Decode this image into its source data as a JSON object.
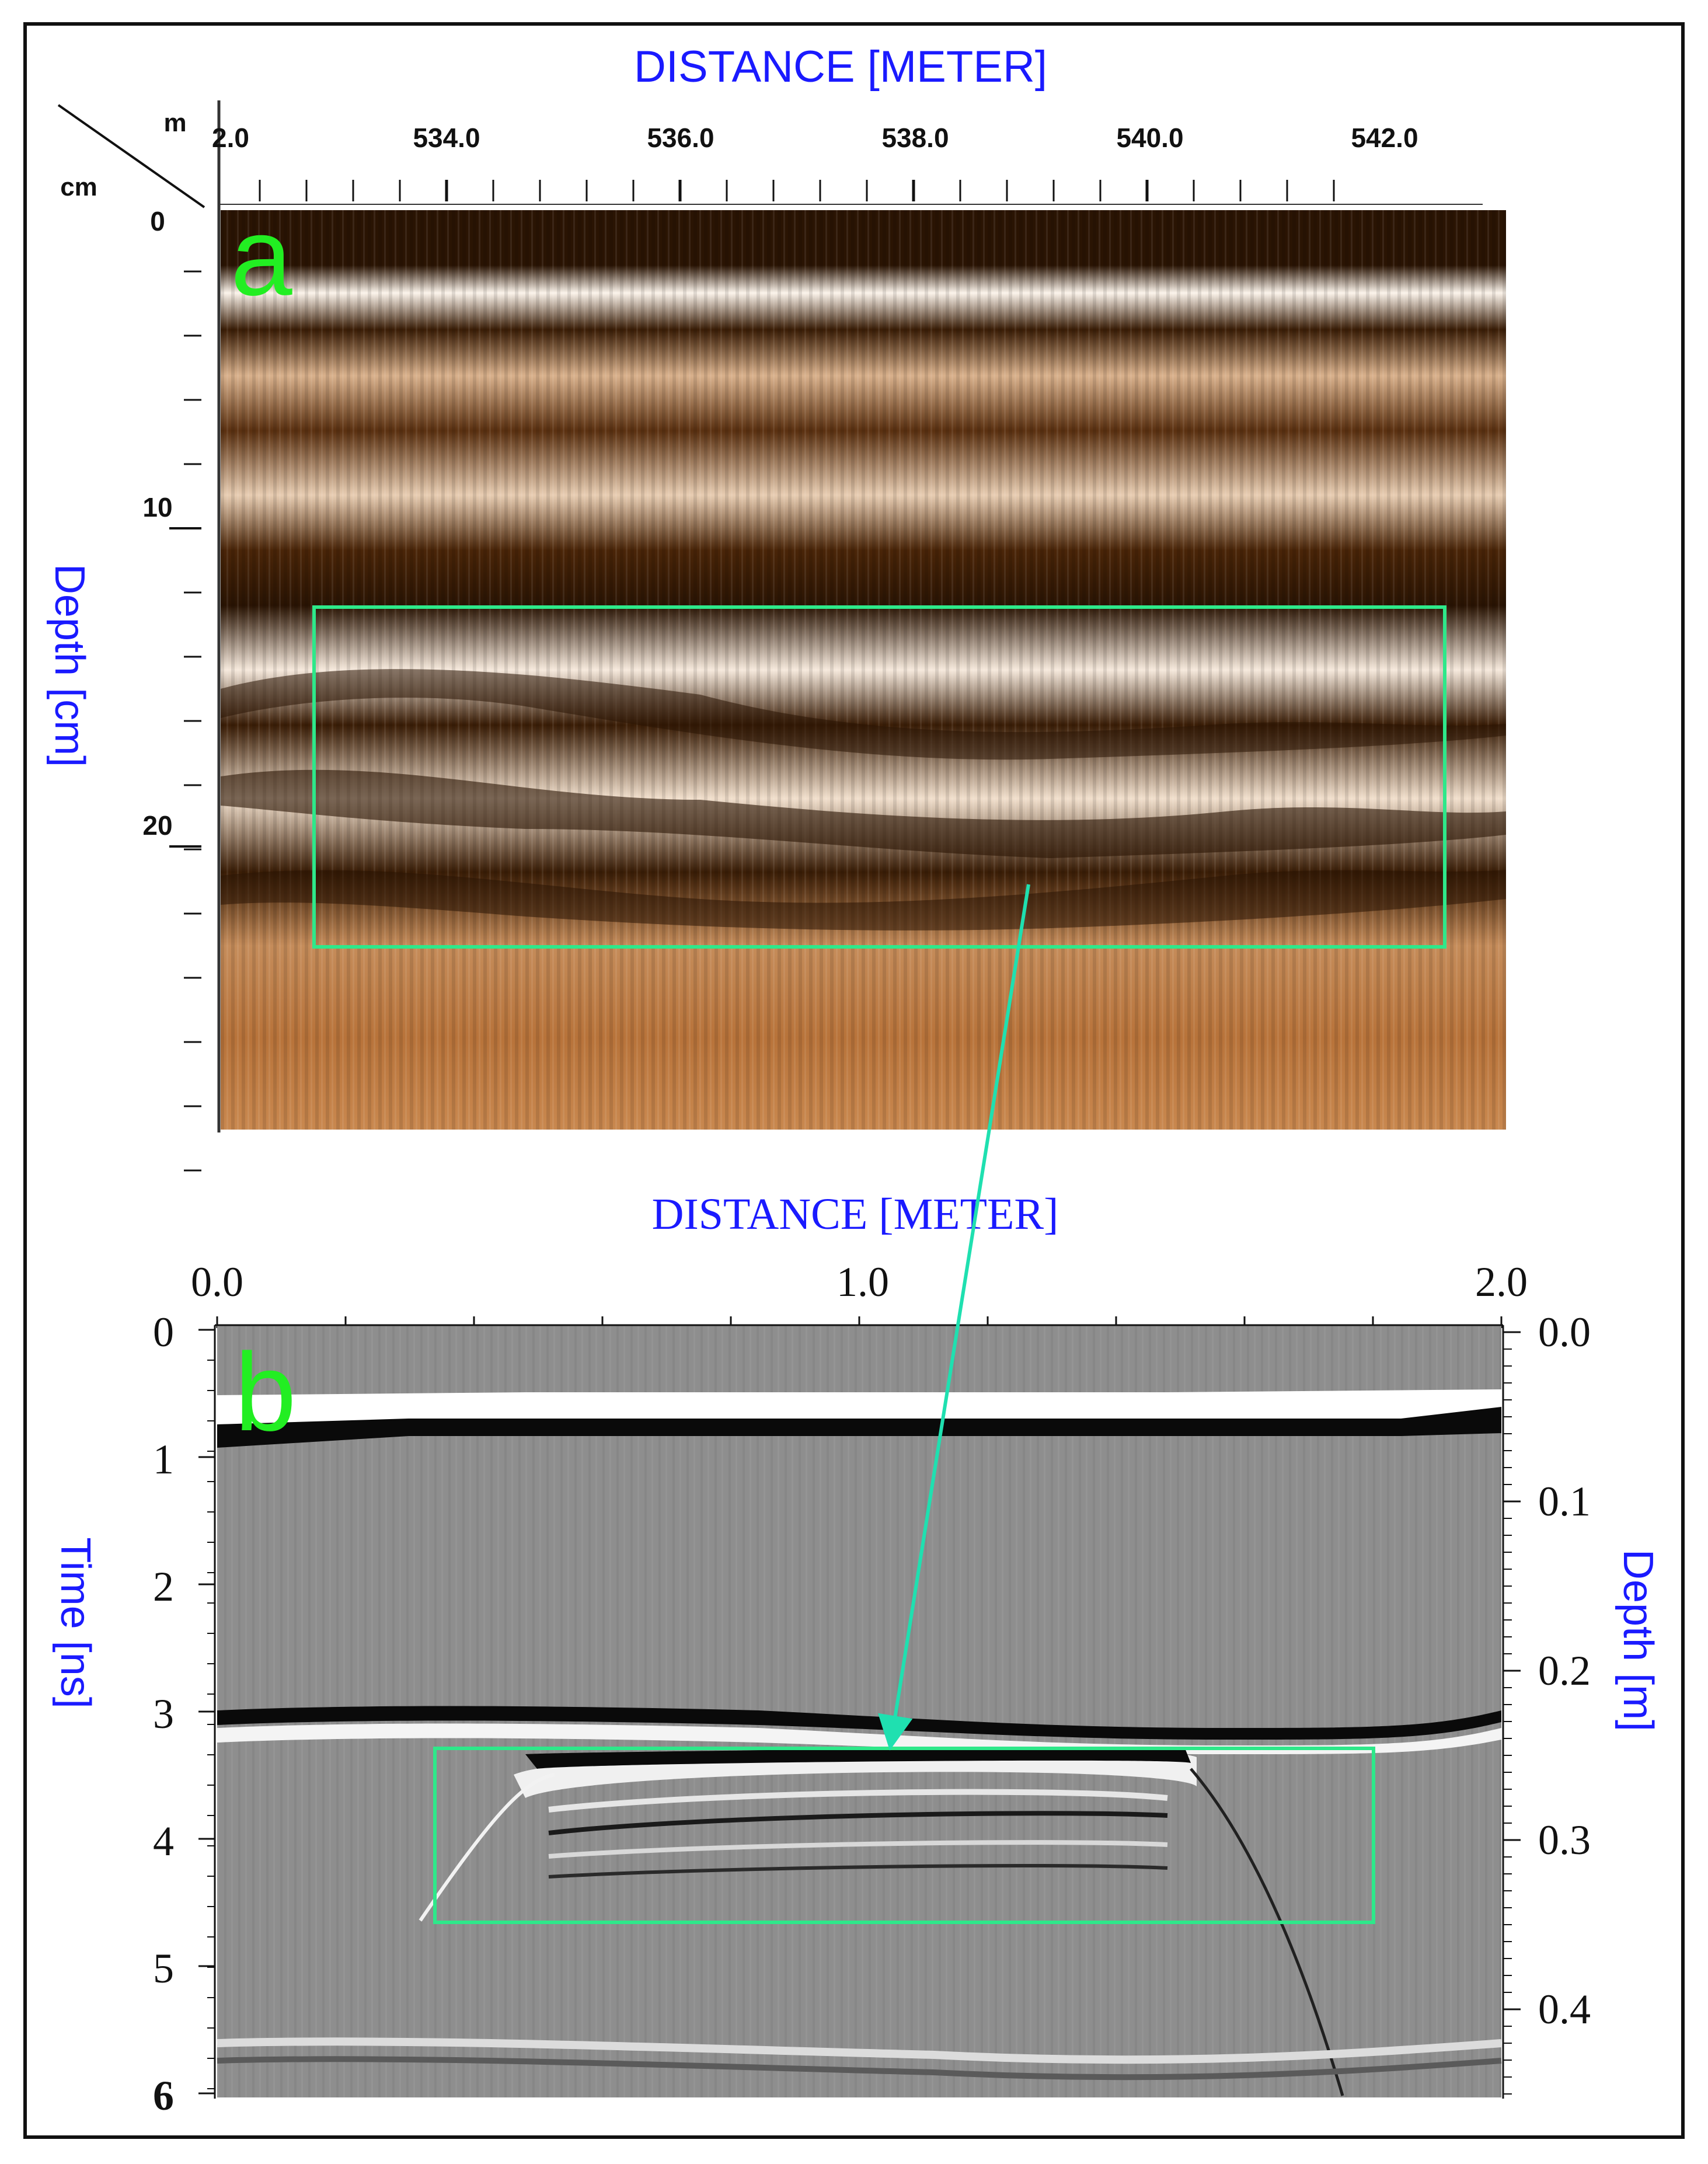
{
  "panel_a": {
    "letter": "a",
    "title": "DISTANCE [METER]",
    "corner_unit_top": "m",
    "corner_unit_left": "cm",
    "x_ticks": [
      "2.0",
      "534.0",
      "536.0",
      "538.0",
      "540.0",
      "542.0"
    ],
    "y_label": "Depth [cm]",
    "y_ticks": [
      "0",
      "10",
      "20"
    ],
    "colors": {
      "dark": "#2a1403",
      "mid": "#b8733a",
      "light": "#fbf3ea",
      "title": "#1a1aff",
      "box": "#2ee88a"
    }
  },
  "panel_b": {
    "letter": "b",
    "title": "DISTANCE [METER]",
    "x_ticks": [
      "0.0",
      "1.0",
      "2.0"
    ],
    "y_left_label": "Time [ns]",
    "y_left_ticks": [
      "0",
      "1",
      "2",
      "3",
      "4",
      "5",
      "6"
    ],
    "y_right_label": "Depth [m]",
    "y_right_ticks": [
      "0.0",
      "0.1",
      "0.2",
      "0.3",
      "0.4"
    ],
    "colors": {
      "background": "#8e8e8e",
      "title": "#1a1aff",
      "box": "#2ee88a",
      "arrow": "#1fe0b0",
      "letter": "#22ee22"
    }
  }
}
